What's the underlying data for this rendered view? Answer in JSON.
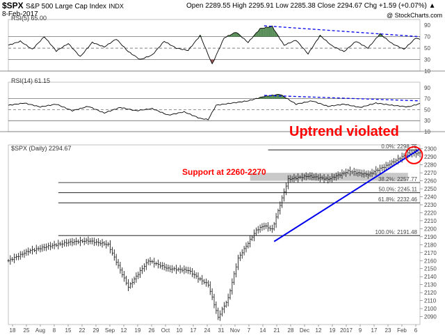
{
  "header": {
    "symbol": "$SPX",
    "name": "S&P 500 Large Cap Index",
    "exchange": "INDX",
    "date": "8-Feb-2017",
    "ohlc": "Open 2289.55  High 2295.91  Low 2285.38  Close 2294.67  Chg +1.59 (+0.07%) ▲",
    "credit": "@ StockCharts.com"
  },
  "colors": {
    "annotation_red": "#ff0000",
    "trendline_blue": "#0000ee",
    "overbought_green": "#3c7a3c",
    "oversold_red": "#8b3a3a"
  },
  "annotations": {
    "uptrend_violated": "Uptrend violated",
    "support": "Support at 2260-2270"
  },
  "chart_data": [
    {
      "type": "line",
      "title": "RSI(5) 65.00",
      "ylim": [
        10,
        100
      ],
      "y_ticks": [
        10,
        30,
        50,
        70,
        90
      ],
      "reference_lines": [
        30,
        50,
        70
      ],
      "series": [
        {
          "name": "RSI(5)",
          "x_index": [
            0,
            6,
            12,
            18,
            24,
            30,
            36,
            42,
            48,
            54,
            60,
            66,
            72,
            78,
            84,
            90,
            96,
            102,
            108,
            114,
            120,
            126,
            132,
            138,
            144,
            150,
            156,
            162,
            168,
            174,
            180,
            186,
            192,
            198,
            204,
            206
          ],
          "values": [
            55,
            62,
            48,
            70,
            45,
            58,
            35,
            60,
            52,
            66,
            44,
            30,
            38,
            62,
            50,
            46,
            72,
            22,
            68,
            78,
            60,
            84,
            88,
            55,
            64,
            40,
            72,
            54,
            44,
            62,
            50,
            75,
            58,
            48,
            68,
            65
          ]
        }
      ],
      "notes": "Green fill above 70 (overbought), red fill below 30 (oversold)"
    },
    {
      "type": "line",
      "title": "RSI(14) 61.15",
      "ylim": [
        10,
        100
      ],
      "y_ticks": [
        10,
        30,
        50,
        70,
        90
      ],
      "reference_lines": [
        30,
        50,
        70
      ],
      "series": [
        {
          "name": "RSI(14)",
          "x_index": [
            0,
            8,
            16,
            24,
            32,
            40,
            48,
            56,
            64,
            72,
            80,
            88,
            96,
            100,
            104,
            112,
            120,
            128,
            136,
            144,
            152,
            160,
            168,
            176,
            184,
            192,
            200,
            206
          ],
          "values": [
            58,
            62,
            55,
            60,
            48,
            56,
            44,
            54,
            48,
            52,
            40,
            46,
            34,
            32,
            58,
            62,
            66,
            74,
            78,
            60,
            66,
            56,
            60,
            54,
            62,
            58,
            55,
            61
          ]
        }
      ]
    },
    {
      "type": "bar",
      "title": "$SPX (Daily) 2294.67",
      "ylim": [
        2080,
        2305
      ],
      "y_ticks": [
        2090,
        2100,
        2110,
        2120,
        2130,
        2140,
        2150,
        2160,
        2170,
        2180,
        2190,
        2200,
        2210,
        2220,
        2230,
        2240,
        2250,
        2260,
        2270,
        2280,
        2290,
        2300
      ],
      "x_tick_labels": [
        "18",
        "25",
        "Aug",
        "8",
        "15",
        "22",
        "29",
        "Sep",
        "12",
        "19",
        "26",
        "Oct",
        "10",
        "17",
        "24",
        "31",
        "Nov",
        "7",
        "14",
        "21",
        "28",
        "Dec",
        "12",
        "19",
        "2017",
        "9",
        "17",
        "23",
        "Feb",
        "6"
      ],
      "series": [
        {
          "name": "$SPX",
          "x_index": [
            0,
            10,
            20,
            30,
            40,
            50,
            60,
            70,
            80,
            90,
            95,
            100,
            105,
            110,
            115,
            120,
            124,
            128,
            132,
            136,
            140,
            150,
            160,
            170,
            180,
            190,
            200,
            206
          ],
          "values": [
            2160,
            2172,
            2178,
            2183,
            2185,
            2180,
            2127,
            2160,
            2150,
            2148,
            2138,
            2130,
            2089,
            2113,
            2163,
            2182,
            2198,
            2204,
            2199,
            2230,
            2262,
            2266,
            2262,
            2272,
            2268,
            2280,
            2294,
            2294.67
          ]
        }
      ],
      "fibonacci_levels": [
        {
          "label": "0.0%: 2298.75",
          "value": 2298.75
        },
        {
          "label": "38.2%: 2257.77",
          "value": 2257.77
        },
        {
          "label": "50.0%: 2245.11",
          "value": 2245.11
        },
        {
          "label": "61.8%: 2232.46",
          "value": 2232.46
        },
        {
          "label": "100.0%: 2191.48",
          "value": 2191.48
        }
      ],
      "support_zone": [
        2260,
        2270
      ],
      "trendline": {
        "from": {
          "x_index": 133,
          "value": 2184
        },
        "to": {
          "x_index": 206,
          "value": 2300
        }
      }
    }
  ]
}
